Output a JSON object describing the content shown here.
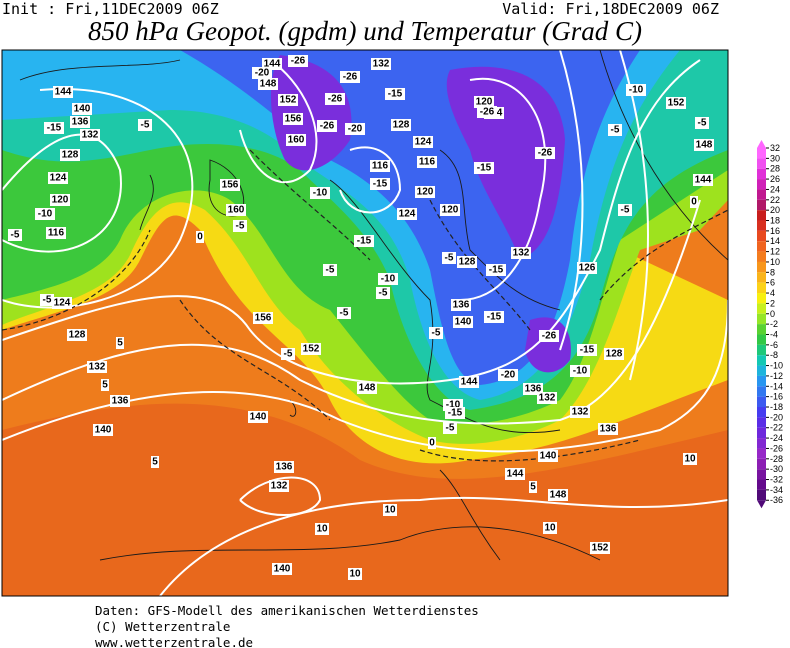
{
  "header": {
    "init": "Init : Fri,11DEC2009 06Z",
    "valid": "Valid: Fri,18DEC2009 06Z",
    "title": "850 hPa Geopot. (gpdm) und Temperatur (Grad C)"
  },
  "colorbar": {
    "ticks": [
      32,
      30,
      28,
      26,
      24,
      22,
      20,
      18,
      16,
      14,
      12,
      10,
      8,
      6,
      4,
      2,
      0,
      -2,
      -4,
      -6,
      -8,
      -10,
      -12,
      -14,
      -16,
      -18,
      -20,
      -22,
      -24,
      -26,
      -28,
      -30,
      -32,
      -34,
      -36
    ],
    "colors": [
      "#ff66ff",
      "#f050f0",
      "#e030d8",
      "#d020b8",
      "#c01890",
      "#b01868",
      "#c81e1e",
      "#d83020",
      "#e84a20",
      "#f06420",
      "#f47c1e",
      "#f8961c",
      "#fab41a",
      "#fcd218",
      "#f8f010",
      "#c8f01e",
      "#96e628",
      "#5ad232",
      "#32c846",
      "#1ec87a",
      "#14c8b4",
      "#1eb4dc",
      "#2896f0",
      "#3278f0",
      "#3c5af0",
      "#463cf0",
      "#5a2ee6",
      "#6e28dc",
      "#8228d2",
      "#9628c8",
      "#8c1eb4",
      "#7814a0",
      "#640a8c",
      "#500a78"
    ]
  },
  "map": {
    "geopotential_labels": [
      "144",
      "148",
      "152",
      "156",
      "160",
      "132",
      "128",
      "124",
      "116",
      "116",
      "120",
      "124",
      "120",
      "120",
      "124",
      "128",
      "132",
      "136",
      "140",
      "126",
      "128",
      "152",
      "148",
      "144",
      "144",
      "140",
      "136",
      "132",
      "128",
      "124",
      "120",
      "116",
      "124",
      "128",
      "132",
      "136",
      "140",
      "156",
      "160",
      "156",
      "152",
      "148",
      "144",
      "136",
      "132",
      "132",
      "136",
      "140",
      "144",
      "148",
      "152",
      "140",
      "136",
      "132",
      "140"
    ],
    "temperature_labels": [
      "-20",
      "-26",
      "-26",
      "-26",
      "-26",
      "-20",
      "-15",
      "-15",
      "-10",
      "-5",
      "0",
      "-15",
      "-10",
      "-5",
      "-15",
      "-5",
      "-5",
      "-5",
      "-5",
      "-5",
      "-15",
      "-26",
      "-26",
      "-26",
      "-20",
      "-15",
      "-10",
      "-5",
      "0",
      "-10",
      "-5",
      "-5",
      "-15",
      "-10",
      "-5",
      "-5",
      "-5",
      "-15",
      "5",
      "5",
      "5",
      "10",
      "10",
      "10",
      "10",
      "10",
      "5",
      "0",
      "-5",
      "-10",
      "-15"
    ]
  },
  "footer": {
    "line1": "Daten: GFS-Modell des amerikanischen Wetterdienstes",
    "line2": "(C) Wetterzentrale",
    "line3": "www.wetterzentrale.de"
  }
}
